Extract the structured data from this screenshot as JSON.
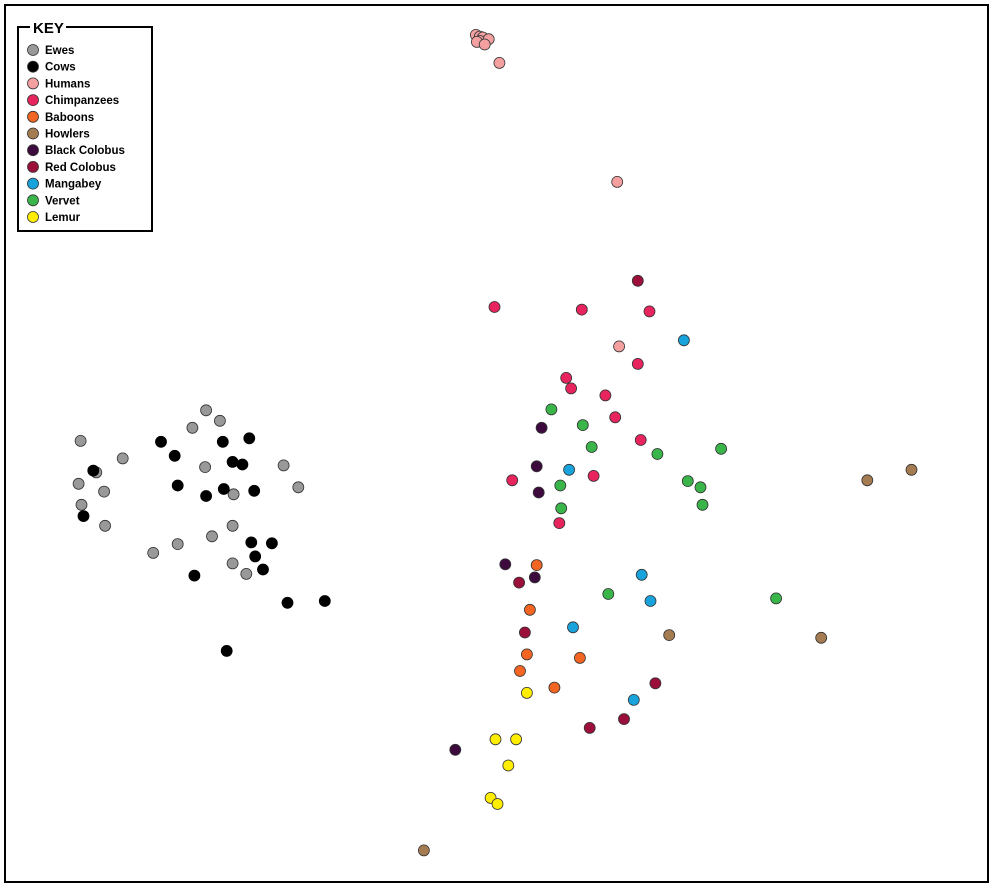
{
  "chart_data": {
    "type": "scatter",
    "title": "",
    "xlabel": "",
    "ylabel": "",
    "xlim": [
      0,
      100
    ],
    "ylim": [
      0,
      100
    ],
    "grid": false,
    "axes_visible": false,
    "legend": {
      "title": "KEY",
      "placement": "top-left"
    },
    "series": [
      {
        "name": "Ewes",
        "color": "#999999",
        "points": [
          [
            7.6,
            50.3
          ],
          [
            11.9,
            48.3
          ],
          [
            19.0,
            51.8
          ],
          [
            20.4,
            53.8
          ],
          [
            21.8,
            52.6
          ],
          [
            9.2,
            46.7
          ],
          [
            7.4,
            45.4
          ],
          [
            10.0,
            44.5
          ],
          [
            7.7,
            43.0
          ],
          [
            10.1,
            40.6
          ],
          [
            20.3,
            47.3
          ],
          [
            28.3,
            47.5
          ],
          [
            29.8,
            45.0
          ],
          [
            23.2,
            44.2
          ],
          [
            21.0,
            39.4
          ],
          [
            23.1,
            40.6
          ],
          [
            17.5,
            38.5
          ],
          [
            15.0,
            37.5
          ],
          [
            23.1,
            36.3
          ],
          [
            24.5,
            35.1
          ]
        ]
      },
      {
        "name": "Cows",
        "color": "#000000",
        "points": [
          [
            15.8,
            50.2
          ],
          [
            22.1,
            50.2
          ],
          [
            24.8,
            50.6
          ],
          [
            17.2,
            48.6
          ],
          [
            23.1,
            47.9
          ],
          [
            24.1,
            47.6
          ],
          [
            8.9,
            46.9
          ],
          [
            17.5,
            45.2
          ],
          [
            22.2,
            44.8
          ],
          [
            25.3,
            44.6
          ],
          [
            20.4,
            44.0
          ],
          [
            7.9,
            41.7
          ],
          [
            25.0,
            38.7
          ],
          [
            27.1,
            38.6
          ],
          [
            25.4,
            37.1
          ],
          [
            26.2,
            35.6
          ],
          [
            19.2,
            34.9
          ],
          [
            28.7,
            31.8
          ],
          [
            32.5,
            32.0
          ],
          [
            22.5,
            26.3
          ]
        ]
      },
      {
        "name": "Humans",
        "color": "#f4a0a0",
        "points": [
          [
            47.9,
            96.7
          ],
          [
            48.3,
            96.5
          ],
          [
            48.6,
            96.4
          ],
          [
            48.3,
            96.0
          ],
          [
            49.2,
            96.2
          ],
          [
            48.0,
            95.9
          ],
          [
            48.8,
            95.6
          ],
          [
            50.3,
            93.5
          ],
          [
            62.3,
            79.9
          ],
          [
            62.5,
            61.1
          ]
        ]
      },
      {
        "name": "Chimpanzees",
        "color": "#e8245e",
        "points": [
          [
            49.8,
            65.6
          ],
          [
            58.7,
            65.3
          ],
          [
            65.6,
            65.1
          ],
          [
            64.4,
            59.1
          ],
          [
            57.1,
            57.5
          ],
          [
            57.6,
            56.3
          ],
          [
            61.1,
            55.5
          ],
          [
            62.1,
            53.0
          ],
          [
            64.7,
            50.4
          ],
          [
            59.9,
            46.3
          ],
          [
            51.6,
            45.8
          ],
          [
            56.4,
            40.9
          ]
        ]
      },
      {
        "name": "Baboons",
        "color": "#f26522",
        "points": [
          [
            54.1,
            36.1
          ],
          [
            53.4,
            31.0
          ],
          [
            53.1,
            25.9
          ],
          [
            58.5,
            25.5
          ],
          [
            52.4,
            24.0
          ],
          [
            55.9,
            22.1
          ]
        ]
      },
      {
        "name": "Howlers",
        "color": "#a57c52",
        "points": [
          [
            92.3,
            47.0
          ],
          [
            87.8,
            45.8
          ],
          [
            67.6,
            28.1
          ],
          [
            83.1,
            27.8
          ],
          [
            42.6,
            3.5
          ]
        ]
      },
      {
        "name": "Black Colobus",
        "color": "#3d0a3e",
        "points": [
          [
            54.6,
            51.8
          ],
          [
            54.1,
            47.4
          ],
          [
            54.3,
            44.4
          ],
          [
            50.9,
            36.2
          ],
          [
            53.9,
            34.7
          ],
          [
            45.8,
            15.0
          ]
        ]
      },
      {
        "name": "Red Colobus",
        "color": "#9b0f3a",
        "points": [
          [
            64.4,
            68.6
          ],
          [
            52.3,
            34.1
          ],
          [
            52.9,
            28.4
          ],
          [
            66.2,
            22.6
          ],
          [
            63.0,
            18.5
          ],
          [
            59.5,
            17.5
          ]
        ]
      },
      {
        "name": "Mangabey",
        "color": "#19a3dc",
        "points": [
          [
            69.1,
            61.8
          ],
          [
            57.4,
            47.0
          ],
          [
            64.8,
            35.0
          ],
          [
            65.7,
            32.0
          ],
          [
            57.8,
            29.0
          ],
          [
            64.0,
            20.7
          ]
        ]
      },
      {
        "name": "Vervet",
        "color": "#3ab54a",
        "points": [
          [
            55.6,
            53.9
          ],
          [
            58.8,
            52.1
          ],
          [
            59.7,
            49.6
          ],
          [
            66.4,
            48.8
          ],
          [
            72.9,
            49.4
          ],
          [
            56.5,
            45.2
          ],
          [
            69.5,
            45.7
          ],
          [
            70.8,
            45.0
          ],
          [
            71.0,
            43.0
          ],
          [
            56.6,
            42.6
          ],
          [
            61.4,
            32.8
          ],
          [
            78.5,
            32.3
          ]
        ]
      },
      {
        "name": "Lemur",
        "color": "#ffee00",
        "points": [
          [
            53.1,
            21.5
          ],
          [
            49.9,
            16.2
          ],
          [
            52.0,
            16.2
          ],
          [
            51.2,
            13.2
          ],
          [
            49.4,
            9.5
          ],
          [
            50.1,
            8.8
          ]
        ]
      }
    ]
  }
}
